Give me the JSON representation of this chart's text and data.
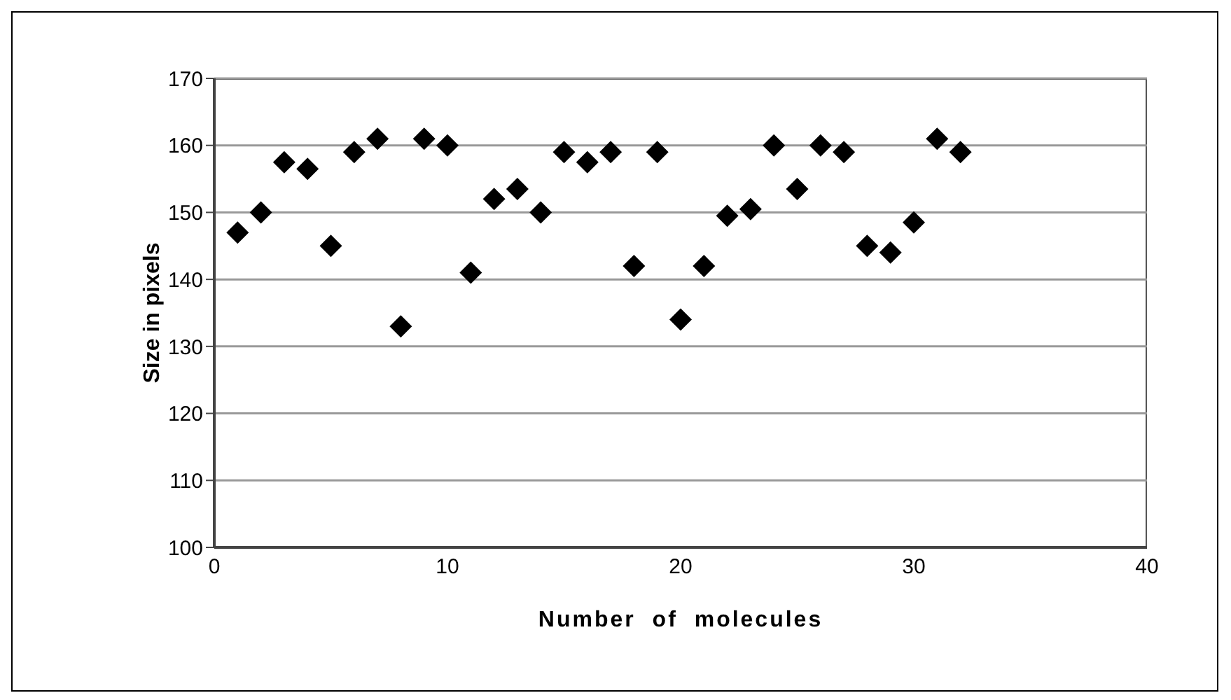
{
  "chart_data": {
    "type": "scatter",
    "xlabel": "Number of molecules",
    "ylabel": "Size in pixels",
    "x": [
      1,
      2,
      3,
      4,
      5,
      6,
      7,
      8,
      9,
      10,
      11,
      12,
      13,
      14,
      15,
      16,
      17,
      18,
      19,
      20,
      21,
      22,
      23,
      24,
      25,
      26,
      27,
      28,
      29,
      30,
      31,
      32
    ],
    "series": [
      {
        "color": "#000000",
        "values": [
          147,
          150,
          157.5,
          156.5,
          145,
          159,
          161,
          133,
          161,
          160,
          141,
          152,
          153.5,
          150,
          159,
          157.5,
          159,
          142,
          159,
          134,
          142,
          149.5,
          150.5,
          160,
          153.5,
          160,
          159,
          145,
          144,
          148.5,
          161,
          159
        ]
      }
    ],
    "xlim": [
      0,
      40
    ],
    "xticks": [
      0,
      10,
      20,
      30,
      40
    ],
    "ylim": [
      100,
      170
    ],
    "yticks": [
      100,
      110,
      120,
      130,
      140,
      150,
      160,
      170
    ],
    "grid": "y",
    "marker": "diamond"
  }
}
